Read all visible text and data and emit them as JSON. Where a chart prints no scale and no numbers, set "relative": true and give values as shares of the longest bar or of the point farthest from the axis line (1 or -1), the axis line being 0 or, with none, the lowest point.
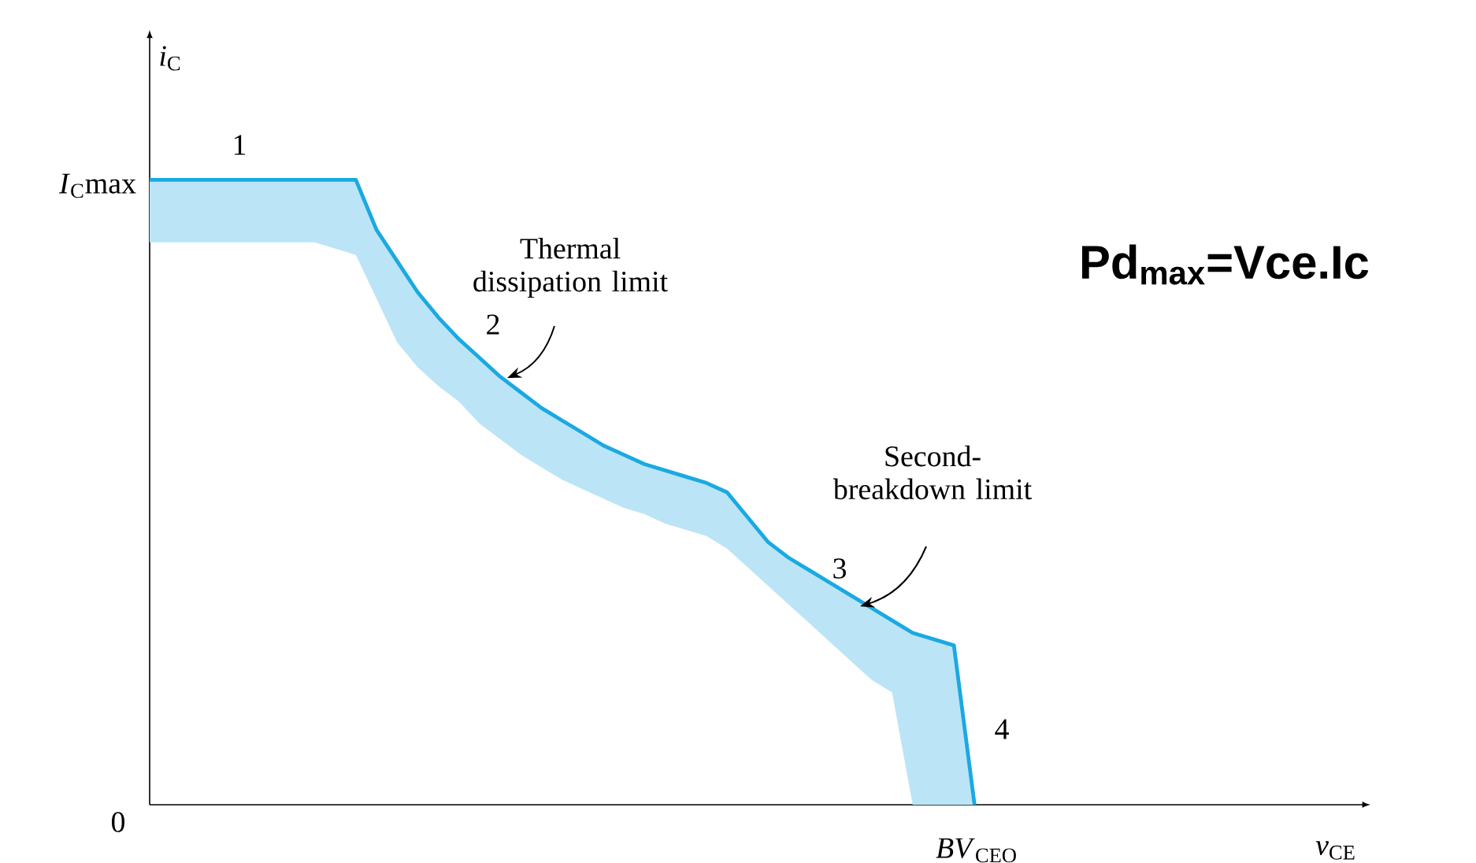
{
  "chart_data": {
    "type": "line",
    "relative": true,
    "ylabel": "*i*$_{C}$",
    "marker": "none",
    "line_style": "solid",
    "categories": [
      null,
      null,
      null,
      null,
      null,
      null,
      null,
      null,
      null,
      null,
      null,
      null,
      null,
      null,
      null,
      null,
      null,
      null,
      null,
      null,
      null,
      null,
      null,
      null,
      null,
      null,
      null,
      null,
      null,
      null,
      null,
      null,
      null,
      null,
      null,
      null,
      null,
      null,
      null,
      null,
      null
    ],
    "series": [
      {
        "color": "#1ba9e1",
        "values": [
          1,
          1,
          1,
          1,
          1,
          1,
          1,
          1,
          1,
          1,
          1,
          0.92,
          0.87,
          0.82,
          0.78,
          0.745,
          0.715,
          0.685,
          0.66,
          0.635,
          0.615,
          0.595,
          0.575,
          0.56,
          0.545,
          0.535,
          0.525,
          0.515,
          0.5,
          0.46,
          0.42,
          0.395,
          0.375,
          0.355,
          0.335,
          0.315,
          0.295,
          0.275,
          0.265,
          0.255,
          0
        ],
        "lower": [
          0.9,
          0.9,
          0.9,
          0.9,
          0.9,
          0.9,
          0.9,
          0.9,
          0.9,
          0.89,
          0.88,
          0.81,
          0.74,
          0.7,
          0.67,
          0.645,
          0.61,
          0.585,
          0.56,
          0.54,
          0.52,
          0.505,
          0.49,
          0.475,
          0.465,
          0.45,
          0.44,
          0.43,
          0.41,
          0.38,
          0.35,
          0.32,
          0.29,
          0.26,
          0.23,
          0.2,
          0.18,
          0,
          0,
          0,
          0
        ],
        "upper": [
          1,
          1,
          1,
          1,
          1,
          1,
          1,
          1,
          1,
          1,
          1,
          0.92,
          0.87,
          0.82,
          0.78,
          0.745,
          0.715,
          0.685,
          0.66,
          0.635,
          0.615,
          0.595,
          0.575,
          0.56,
          0.545,
          0.535,
          0.525,
          0.515,
          0.5,
          0.46,
          0.42,
          0.395,
          0.375,
          0.355,
          0.335,
          0.315,
          0.295,
          0.275,
          0.265,
          0.255,
          0
        ]
      }
    ],
    "annotations": [
      "1",
      "Thermal dissipation limit",
      "2",
      "Second-breakdown limit",
      "3",
      "4",
      "**Pd$_{max}$=Vce.Ic**",
      "0",
      "*I*$_{C}$max",
      "*BV*$_{CEO}$",
      "*v*$_{CE}$"
    ]
  }
}
